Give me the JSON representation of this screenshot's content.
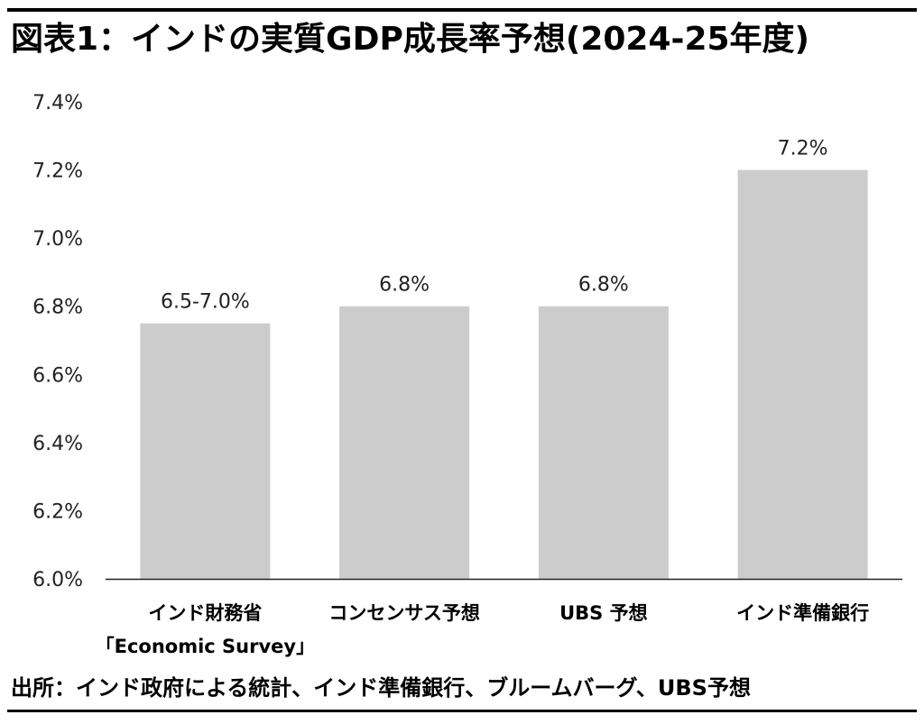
{
  "title": "図表1：インドの実質GDP成長率予想(2024-25年度)",
  "source": "出所：インド政府による統計、インド準備銀行、ブルームバーグ、UBS予想",
  "colors": {
    "bar": "#cccccc",
    "axis": "#222222",
    "rule": "#000000"
  },
  "chart_data": {
    "type": "bar",
    "title": "",
    "xlabel": "",
    "ylabel": "",
    "ylim": [
      6.0,
      7.4
    ],
    "grid": false,
    "categories": [
      [
        "インド財務省",
        "「Economic Survey」"
      ],
      [
        "コンセンサス予想"
      ],
      [
        "UBS 予想"
      ],
      [
        "インド準備銀行"
      ]
    ],
    "values": [
      6.75,
      6.8,
      6.8,
      7.2
    ],
    "range": [
      [
        6.5,
        7.0
      ],
      null,
      null,
      null
    ],
    "data_labels": [
      "6.5-7.0%",
      "6.8%",
      "6.8%",
      "7.2%"
    ],
    "y_ticks": [
      6.0,
      6.2,
      6.4,
      6.6,
      6.8,
      7.0,
      7.2,
      7.4
    ],
    "y_tick_labels": [
      "6.0%",
      "6.2%",
      "6.4%",
      "6.6%",
      "6.8%",
      "7.0%",
      "7.2%",
      "7.4%"
    ]
  }
}
